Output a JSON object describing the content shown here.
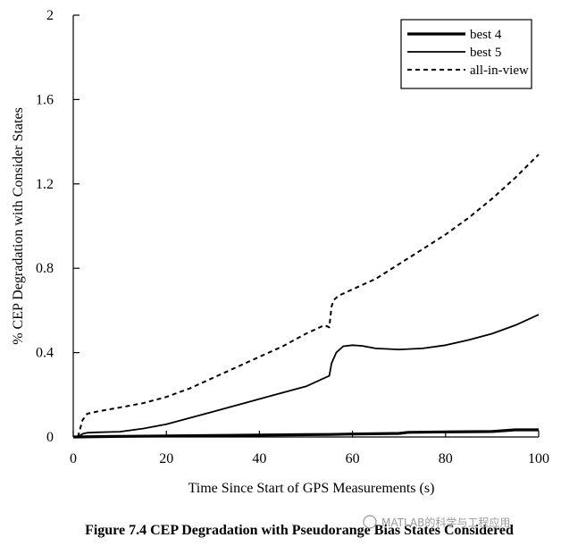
{
  "chart_data": {
    "type": "line",
    "xlabel": "Time Since Start of GPS Measurements (s)",
    "ylabel": "% CEP Degradation with Consider States",
    "xlim": [
      0,
      100
    ],
    "ylim": [
      0,
      2
    ],
    "xticks": [
      "0",
      "20",
      "40",
      "60",
      "80",
      "100"
    ],
    "yticks": [
      "0",
      "0.4",
      "0.8",
      "1.2",
      "1.6",
      "2"
    ],
    "legend_position": "top-right",
    "grid": false,
    "series": [
      {
        "name": "best 4",
        "style": "thick-solid",
        "x": [
          0,
          10,
          20,
          30,
          40,
          50,
          55,
          60,
          70,
          72,
          80,
          90,
          95,
          100
        ],
        "values": [
          0.0,
          0.003,
          0.005,
          0.007,
          0.009,
          0.011,
          0.012,
          0.014,
          0.017,
          0.022,
          0.024,
          0.026,
          0.034,
          0.034
        ]
      },
      {
        "name": "best 5",
        "style": "thin-solid",
        "x": [
          1,
          2,
          3,
          5,
          10,
          15,
          20,
          25,
          30,
          35,
          40,
          45,
          50,
          55,
          55.5,
          56.5,
          58,
          60,
          62,
          65,
          70,
          75,
          80,
          85,
          90,
          95,
          100
        ],
        "values": [
          0.0,
          0.015,
          0.02,
          0.022,
          0.025,
          0.04,
          0.06,
          0.09,
          0.12,
          0.15,
          0.18,
          0.21,
          0.24,
          0.29,
          0.35,
          0.4,
          0.43,
          0.435,
          0.432,
          0.42,
          0.415,
          0.42,
          0.435,
          0.46,
          0.49,
          0.53,
          0.58
        ]
      },
      {
        "name": "all-in-view",
        "style": "dashed",
        "x": [
          1,
          2,
          3,
          5,
          10,
          15,
          20,
          25,
          30,
          35,
          40,
          45,
          50,
          54,
          55,
          55.5,
          56,
          57,
          60,
          65,
          70,
          75,
          80,
          85,
          90,
          95,
          100
        ],
        "values": [
          0.0,
          0.08,
          0.11,
          0.12,
          0.14,
          0.16,
          0.19,
          0.23,
          0.28,
          0.33,
          0.38,
          0.43,
          0.49,
          0.53,
          0.52,
          0.62,
          0.65,
          0.67,
          0.7,
          0.75,
          0.82,
          0.89,
          0.96,
          1.04,
          1.13,
          1.23,
          1.34
        ]
      }
    ]
  },
  "caption": "Figure 7.4 CEP Degradation with Pseudorange Bias States Considered",
  "watermark": "MATLAB的科学与工程应用",
  "colors": {
    "line": "#000000",
    "background": "#ffffff",
    "watermark": "#9a9a9a"
  }
}
